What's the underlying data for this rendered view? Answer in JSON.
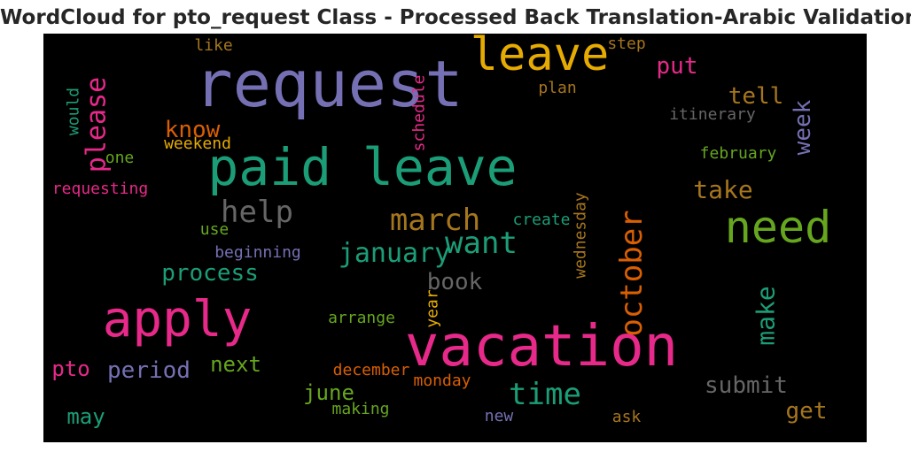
{
  "title": "WordCloud for pto_request Class - Processed Back Translation-Arabic Validation Set",
  "chart_data": {
    "type": "wordcloud",
    "background": "#000000",
    "palette": "Dark2",
    "words": [
      {
        "text": "request",
        "color": "#7570b3"
      },
      {
        "text": "leave",
        "color": "#e6ab02"
      },
      {
        "text": "paid leave",
        "color": "#1b9e77"
      },
      {
        "text": "need",
        "color": "#66a61e"
      },
      {
        "text": "vacation",
        "color": "#e7298a"
      },
      {
        "text": "apply",
        "color": "#e7298a"
      },
      {
        "text": "help",
        "color": "#666666"
      },
      {
        "text": "march",
        "color": "#a6761d"
      },
      {
        "text": "want",
        "color": "#1b9e77"
      },
      {
        "text": "october",
        "color": "#d95f02"
      },
      {
        "text": "time",
        "color": "#1b9e77"
      },
      {
        "text": "please",
        "color": "#e7298a"
      },
      {
        "text": "january",
        "color": "#1b9e77"
      },
      {
        "text": "make",
        "color": "#1b9e77"
      },
      {
        "text": "know",
        "color": "#d95f02"
      },
      {
        "text": "take",
        "color": "#a6761d"
      },
      {
        "text": "process",
        "color": "#1b9e77"
      },
      {
        "text": "book",
        "color": "#666666"
      },
      {
        "text": "submit",
        "color": "#666666"
      },
      {
        "text": "period",
        "color": "#7570b3"
      },
      {
        "text": "tell",
        "color": "#a6761d"
      },
      {
        "text": "put",
        "color": "#e7298a"
      },
      {
        "text": "week",
        "color": "#7570b3"
      },
      {
        "text": "get",
        "color": "#a6761d"
      },
      {
        "text": "pto",
        "color": "#e7298a"
      },
      {
        "text": "next",
        "color": "#66a61e"
      },
      {
        "text": "june",
        "color": "#66a61e"
      },
      {
        "text": "may",
        "color": "#1b9e77"
      },
      {
        "text": "itinerary",
        "color": "#666666"
      },
      {
        "text": "february",
        "color": "#66a61e"
      },
      {
        "text": "plan",
        "color": "#a6761d"
      },
      {
        "text": "would",
        "color": "#1b9e77"
      },
      {
        "text": "schedule",
        "color": "#e7298a"
      },
      {
        "text": "weekend",
        "color": "#e6ab02"
      },
      {
        "text": "requesting",
        "color": "#e7298a"
      },
      {
        "text": "one",
        "color": "#66a61e"
      },
      {
        "text": "like",
        "color": "#a6761d"
      },
      {
        "text": "step",
        "color": "#a6761d"
      },
      {
        "text": "beginning",
        "color": "#7570b3"
      },
      {
        "text": "use",
        "color": "#66a61e"
      },
      {
        "text": "create",
        "color": "#1b9e77"
      },
      {
        "text": "wednesday",
        "color": "#a6761d"
      },
      {
        "text": "arrange",
        "color": "#66a61e"
      },
      {
        "text": "year",
        "color": "#e6ab02"
      },
      {
        "text": "december",
        "color": "#d95f02"
      },
      {
        "text": "monday",
        "color": "#d95f02"
      },
      {
        "text": "making",
        "color": "#66a61e"
      },
      {
        "text": "new",
        "color": "#7570b3"
      },
      {
        "text": "ask",
        "color": "#a6761d"
      }
    ]
  }
}
